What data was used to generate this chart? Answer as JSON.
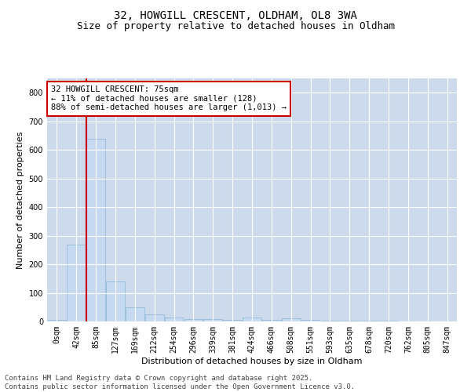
{
  "title_line1": "32, HOWGILL CRESCENT, OLDHAM, OL8 3WA",
  "title_line2": "Size of property relative to detached houses in Oldham",
  "xlabel": "Distribution of detached houses by size in Oldham",
  "ylabel": "Number of detached properties",
  "bar_color": "#c5d9f1",
  "bar_edge_color": "#8ab4d4",
  "vline_color": "#cc0000",
  "annotation_text": "32 HOWGILL CRESCENT: 75sqm\n← 11% of detached houses are smaller (128)\n88% of semi-detached houses are larger (1,013) →",
  "annotation_box_color": "#cc0000",
  "categories": [
    "0sqm",
    "42sqm",
    "85sqm",
    "127sqm",
    "169sqm",
    "212sqm",
    "254sqm",
    "296sqm",
    "339sqm",
    "381sqm",
    "424sqm",
    "466sqm",
    "508sqm",
    "551sqm",
    "593sqm",
    "635sqm",
    "678sqm",
    "720sqm",
    "762sqm",
    "805sqm",
    "847sqm"
  ],
  "values": [
    5,
    270,
    640,
    140,
    48,
    25,
    15,
    8,
    8,
    5,
    15,
    5,
    12,
    5,
    3,
    2,
    2,
    2,
    1,
    1,
    1
  ],
  "ylim": [
    0,
    850
  ],
  "yticks": [
    0,
    100,
    200,
    300,
    400,
    500,
    600,
    700,
    800
  ],
  "background_color": "#ffffff",
  "grid_color": "#ccdaeb",
  "footer_text": "Contains HM Land Registry data © Crown copyright and database right 2025.\nContains public sector information licensed under the Open Government Licence v3.0.",
  "title_fontsize": 10,
  "subtitle_fontsize": 9,
  "axis_label_fontsize": 8,
  "tick_fontsize": 7,
  "annotation_fontsize": 7.5,
  "footer_fontsize": 6.5,
  "vline_pos": 1.5
}
